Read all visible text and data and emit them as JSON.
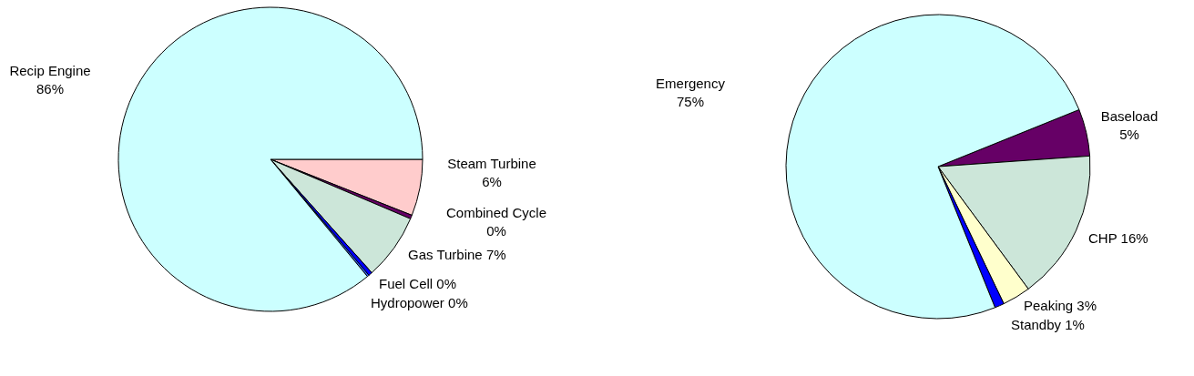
{
  "chart_data": [
    {
      "type": "pie",
      "categories": [
        "Steam Turbine",
        "Combined Cycle",
        "Gas Turbine",
        "Fuel Cell",
        "Hydropower",
        "Recip Engine"
      ],
      "values": [
        6,
        0.4,
        7,
        0.4,
        0.2,
        86
      ],
      "value_labels": [
        "6%",
        "0%",
        "7%",
        "0%",
        "0%",
        "86%"
      ],
      "colors": [
        "#ffcccc",
        "#660066",
        "#cce6d9",
        "#0000ff",
        "#3366ff",
        "#ccffff"
      ]
    },
    {
      "type": "pie",
      "categories": [
        "Baseload",
        "CHP",
        "Peaking",
        "Standby",
        "Emergency"
      ],
      "values": [
        5,
        16,
        3,
        1,
        75
      ],
      "value_labels": [
        "5%",
        "16%",
        "3%",
        "1%",
        "75%"
      ],
      "colors": [
        "#660066",
        "#cce6d9",
        "#ffffcc",
        "#0000ff",
        "#ccffff"
      ]
    }
  ]
}
